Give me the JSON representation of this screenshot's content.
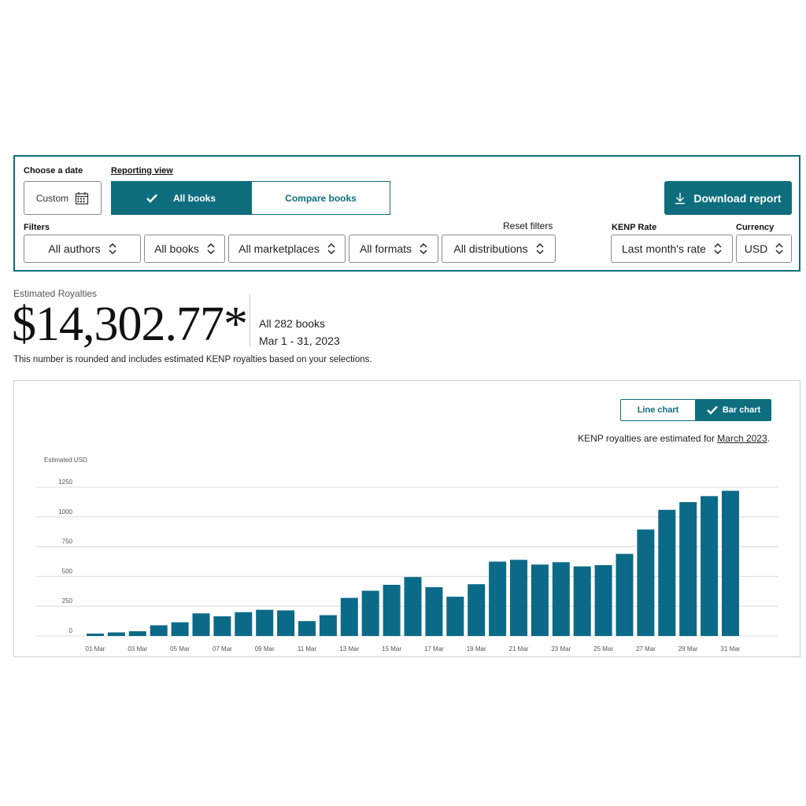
{
  "filters_panel": {
    "date_label": "Choose a date",
    "date_value": "Custom",
    "reporting_view_label": "Reporting view",
    "view_all_books": "All books",
    "view_compare_books": "Compare books",
    "download_label": "Download report",
    "filters_label": "Filters",
    "reset_label": "Reset filters",
    "authors": "All authors",
    "books": "All books",
    "marketplaces": "All marketplaces",
    "formats": "All formats",
    "distributions": "All distributions",
    "kenp_label": "KENP Rate",
    "kenp_value": "Last month's rate",
    "currency_label": "Currency",
    "currency_value": "USD"
  },
  "summary": {
    "label": "Estimated Royalties",
    "amount": "$14,302.77*",
    "books": "All 282 books",
    "range": "Mar 1 - 31, 2023",
    "note": "This number is rounded and includes estimated KENP royalties based on your selections."
  },
  "chart_controls": {
    "line_label": "Line chart",
    "bar_label": "Bar chart",
    "kenp_note_prefix": "KENP royalties are estimated for ",
    "kenp_note_link": "March 2023",
    "kenp_note_suffix": "."
  },
  "colors": {
    "accent": "#0e6e7e",
    "bar": "#0b6a87"
  },
  "chart_data": {
    "type": "bar",
    "ylabel": "Estimated USD",
    "ylim": [
      0,
      1250
    ],
    "yticks": [
      0,
      250,
      500,
      750,
      1000,
      1250
    ],
    "grid": true,
    "categories": [
      "01 Mar",
      "02 Mar",
      "03 Mar",
      "04 Mar",
      "05 Mar",
      "06 Mar",
      "07 Mar",
      "08 Mar",
      "09 Mar",
      "10 Mar",
      "11 Mar",
      "12 Mar",
      "13 Mar",
      "14 Mar",
      "15 Mar",
      "16 Mar",
      "17 Mar",
      "18 Mar",
      "19 Mar",
      "20 Mar",
      "21 Mar",
      "22 Mar",
      "23 Mar",
      "24 Mar",
      "25 Mar",
      "26 Mar",
      "27 Mar",
      "28 Mar",
      "29 Mar",
      "30 Mar",
      "31 Mar"
    ],
    "tick_labels": [
      "01 Mar",
      "03 Mar",
      "05 Mar",
      "07 Mar",
      "09 Mar",
      "11 Mar",
      "13 Mar",
      "15 Mar",
      "17 Mar",
      "19 Mar",
      "21 Mar",
      "23 Mar",
      "25 Mar",
      "27 Mar",
      "29 Mar",
      "31 Mar"
    ],
    "values": [
      20,
      30,
      40,
      90,
      115,
      190,
      165,
      200,
      220,
      215,
      125,
      175,
      320,
      380,
      430,
      495,
      410,
      330,
      435,
      625,
      640,
      600,
      620,
      585,
      595,
      690,
      895,
      1060,
      1125,
      1175,
      1220
    ]
  }
}
